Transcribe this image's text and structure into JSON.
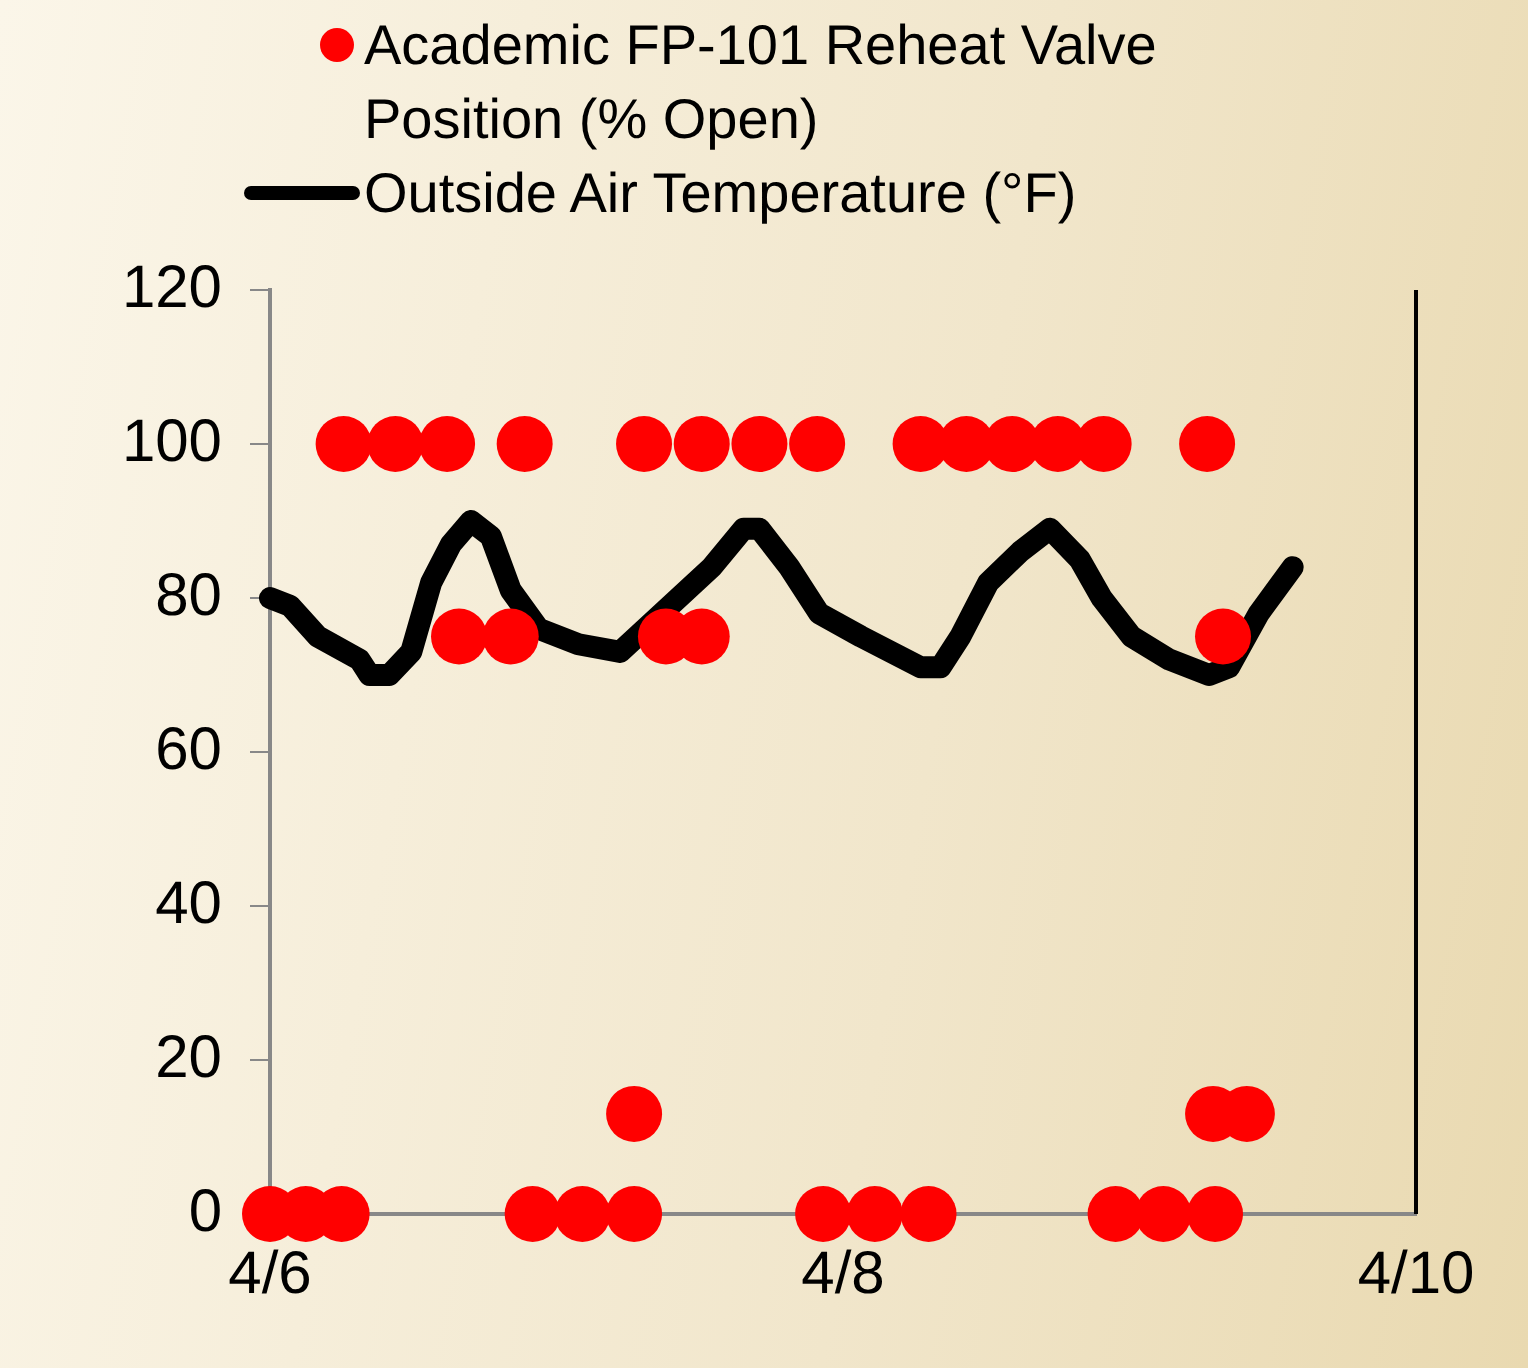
{
  "chart_data": {
    "type": "scatter",
    "legend": "top",
    "grid": false,
    "xlim": [
      "--04-06",
      "--04-10"
    ],
    "xticks": [
      {
        "value": "--04-06",
        "label": "4/6"
      },
      {
        "value": "--04-08",
        "label": "4/8"
      },
      {
        "value": "--04-10",
        "label": "4/10"
      }
    ],
    "ylim": [
      0,
      120
    ],
    "yticks": [
      0,
      20,
      40,
      60,
      80,
      100,
      120
    ],
    "series": [
      {
        "name": "Academic FP-101 Reheat Valve Position (% Open)",
        "marker": "circle",
        "color": "#ff0000",
        "x": [
          "--04-06T00:00",
          "--04-06T03:00",
          "--04-06T06:00",
          "--04-06T06:10",
          "--04-06T10:30",
          "--04-06T14:50",
          "--04-06T15:50",
          "--04-06T20:10",
          "--04-06T21:20",
          "--04-06T22:00",
          "--04-07T02:10",
          "--04-07T06:30",
          "--04-07T06:30",
          "--04-07T07:20",
          "--04-07T09:10",
          "--04-07T12:10",
          "--04-07T12:10",
          "--04-07T17:00",
          "--04-07T21:50",
          "--04-07T22:20",
          "--04-08T02:40",
          "--04-08T07:10",
          "--04-08T06:30",
          "--04-08T10:20",
          "--04-08T14:10",
          "--04-08T18:00",
          "--04-08T21:50",
          "--04-08T22:50",
          "--04-09T02:50",
          "--04-09T06:30",
          "--04-09T07:00",
          "--04-09T07:10",
          "--04-09T07:50",
          "--04-09T09:50"
        ],
        "values": [
          0,
          0,
          0,
          100,
          100,
          100,
          75,
          75,
          100,
          0,
          0,
          0,
          13,
          100,
          75,
          75,
          100,
          100,
          100,
          0,
          0,
          0,
          100,
          100,
          100,
          100,
          100,
          0,
          0,
          100,
          13,
          0,
          75,
          13
        ]
      },
      {
        "name": "Outside Air Temperature (°F)",
        "type": "line",
        "marker": "none",
        "color": "#000000",
        "x": [
          "--04-06T00:00",
          "--04-06T01:40",
          "--04-06T04:00",
          "--04-06T07:30",
          "--04-06T08:20",
          "--04-06T10:00",
          "--04-06T11:50",
          "--04-06T13:30",
          "--04-06T15:10",
          "--04-06T16:50",
          "--04-06T18:30",
          "--04-06T20:10",
          "--04-06T22:30",
          "--04-07T01:50",
          "--04-07T05:20",
          "--04-07T13:00",
          "--04-07T15:40",
          "--04-07T17:00",
          "--04-07T19:30",
          "--04-07T22:00",
          "--04-08T01:30",
          "--04-08T06:30",
          "--04-08T08:10",
          "--04-08T09:50",
          "--04-08T12:10",
          "--04-08T14:50",
          "--04-08T17:20",
          "--04-08T19:50",
          "--04-08T21:40",
          "--04-09T00:10",
          "--04-09T03:20",
          "--04-09T06:40",
          "--04-09T08:20",
          "--04-09T10:50",
          "--04-09T13:40"
        ],
        "values": [
          80,
          79,
          75,
          72,
          70,
          70,
          73,
          82,
          87,
          90,
          88,
          81,
          76,
          74,
          73,
          84,
          89,
          89,
          84,
          78,
          75,
          71,
          71,
          75,
          82,
          86,
          89,
          85,
          80,
          75,
          72,
          70,
          71,
          78,
          84
        ]
      }
    ]
  }
}
